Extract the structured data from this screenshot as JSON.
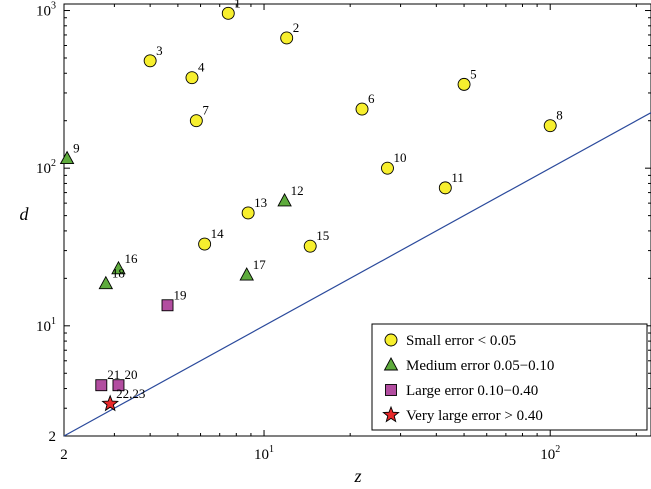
{
  "chart_data": {
    "type": "scatter",
    "xscale": "log",
    "yscale": "log",
    "xlim": [
      2,
      225
    ],
    "ylim": [
      2,
      1100
    ],
    "xlabel": "z",
    "ylabel": "d",
    "x_ticks": [
      {
        "value": 2,
        "base": "2",
        "exp": ""
      },
      {
        "value": 10,
        "base": "10",
        "exp": "1"
      },
      {
        "value": 100,
        "base": "10",
        "exp": "2"
      }
    ],
    "y_ticks": [
      {
        "value": 2,
        "base": "2",
        "exp": ""
      },
      {
        "value": 10,
        "base": "10",
        "exp": "1"
      },
      {
        "value": 100,
        "base": "10",
        "exp": "2"
      },
      {
        "value": 1000,
        "base": "10",
        "exp": "3"
      }
    ],
    "reference_line": {
      "from": [
        2,
        2
      ],
      "to": [
        225,
        225
      ],
      "color": "#2b4a9c"
    },
    "legend": {
      "position": "bottom-right"
    },
    "series": [
      {
        "name": "Small error < 0.05",
        "marker": "circle",
        "color": "#f7ef2e",
        "points": [
          {
            "label": "1",
            "x": 7.5,
            "y": 960
          },
          {
            "label": "2",
            "x": 12,
            "y": 670
          },
          {
            "label": "3",
            "x": 4.0,
            "y": 480
          },
          {
            "label": "4",
            "x": 5.6,
            "y": 375
          },
          {
            "label": "5",
            "x": 50,
            "y": 340
          },
          {
            "label": "6",
            "x": 22,
            "y": 237
          },
          {
            "label": "7",
            "x": 5.8,
            "y": 200
          },
          {
            "label": "8",
            "x": 100,
            "y": 186
          },
          {
            "label": "10",
            "x": 27,
            "y": 100
          },
          {
            "label": "11",
            "x": 43,
            "y": 75
          },
          {
            "label": "13",
            "x": 8.8,
            "y": 52
          },
          {
            "label": "14",
            "x": 6.2,
            "y": 33
          },
          {
            "label": "15",
            "x": 14.5,
            "y": 32
          }
        ]
      },
      {
        "name": "Medium error 0.05−0.10",
        "marker": "triangle",
        "color": "#5eab3c",
        "points": [
          {
            "label": "9",
            "x": 2.05,
            "y": 115
          },
          {
            "label": "12",
            "x": 11.8,
            "y": 62
          },
          {
            "label": "16",
            "x": 3.1,
            "y": 23
          },
          {
            "label": "17",
            "x": 8.7,
            "y": 21
          },
          {
            "label": "18",
            "x": 2.8,
            "y": 18.5
          }
        ]
      },
      {
        "name": "Large error 0.10−0.40",
        "marker": "square",
        "color": "#b24da0",
        "points": [
          {
            "label": "19",
            "x": 4.6,
            "y": 13.5
          },
          {
            "label": "21",
            "x": 2.7,
            "y": 4.2
          },
          {
            "label": "20",
            "x": 3.1,
            "y": 4.2
          }
        ]
      },
      {
        "name": "Very large error > 0.40",
        "marker": "star",
        "color": "#e8292b",
        "points": [
          {
            "label": "22,23",
            "x": 2.9,
            "y": 3.2
          }
        ]
      }
    ]
  }
}
